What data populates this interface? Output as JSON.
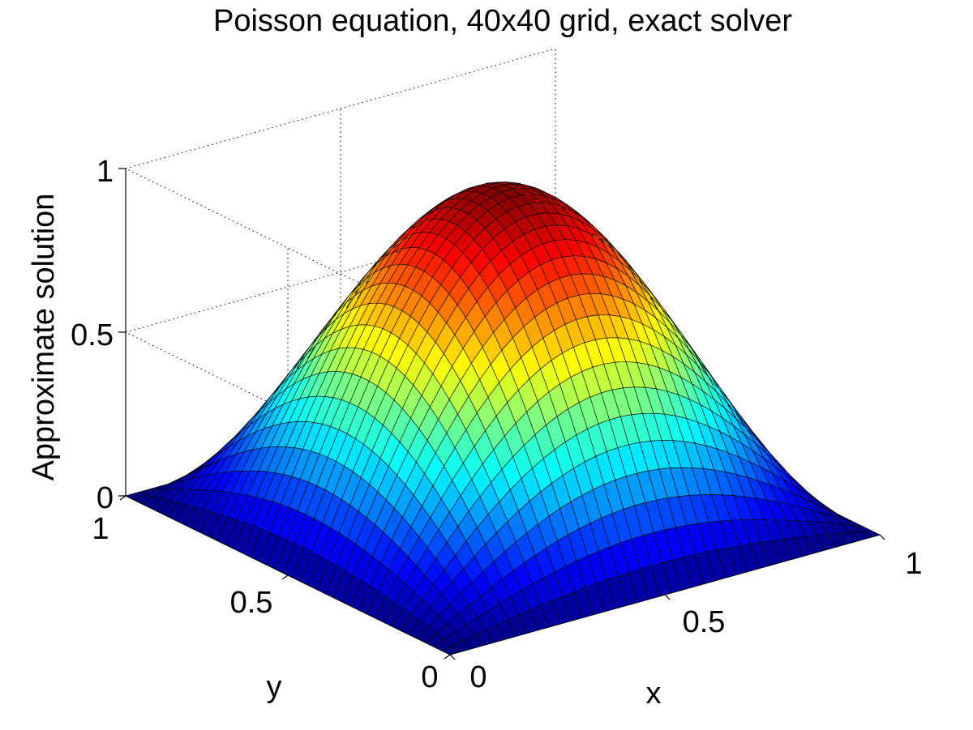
{
  "chart_data": {
    "type": "surface",
    "title": "Poisson equation, 40x40 grid, exact solver",
    "xlabel": "x",
    "ylabel": "y",
    "zlabel": "Approximate solution",
    "x": {
      "range": [
        0,
        1
      ],
      "ticks": [
        0,
        0.5,
        1
      ],
      "tick_labels": [
        "0",
        "0.5",
        "1"
      ]
    },
    "y": {
      "range": [
        0,
        1
      ],
      "ticks": [
        0,
        0.5,
        1
      ],
      "tick_labels": [
        "0",
        "0.5",
        "1"
      ]
    },
    "z": {
      "range": [
        0,
        1
      ],
      "ticks": [
        0,
        0.5,
        1
      ],
      "tick_labels": [
        "0",
        "0.5",
        "1"
      ]
    },
    "grid": {
      "nx": 40,
      "ny": 40
    },
    "function": "sin(pi*x)*sin(pi*y)",
    "peak": {
      "x": 0.5,
      "y": 0.5,
      "z": 1
    },
    "colormap": "jet",
    "grid_lines": true,
    "edge_color": "#000000",
    "background": "#ffffff"
  }
}
